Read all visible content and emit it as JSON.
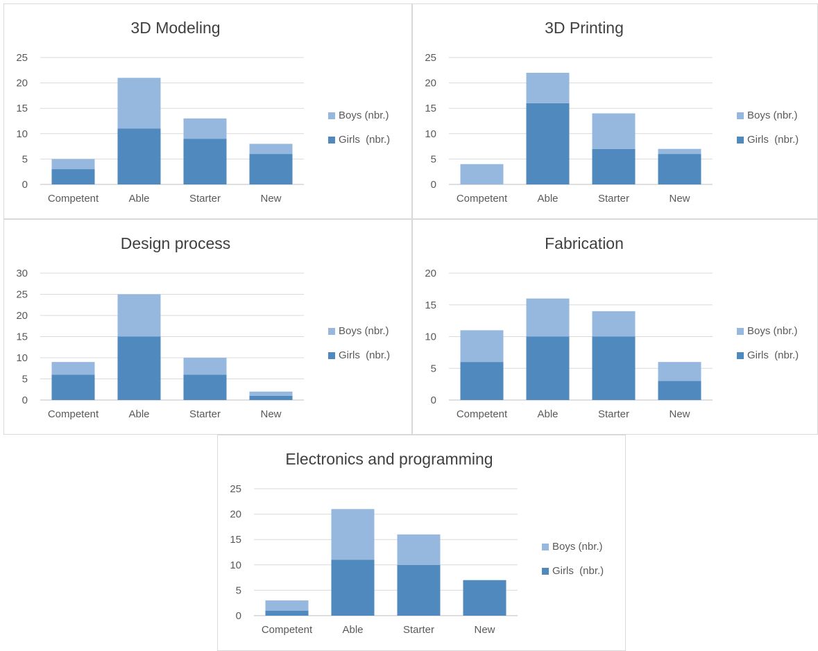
{
  "colors": {
    "girls": "#4f89bd",
    "boys": "#96b8df",
    "grid": "#d9d9d9",
    "text": "#595959",
    "title": "#404040"
  },
  "chart_data": [
    {
      "type": "bar",
      "stacked": true,
      "title": "3D Modeling",
      "categories": [
        "Competent",
        "Able",
        "Starter",
        "New"
      ],
      "series": [
        {
          "name": "Girls  (nbr.)",
          "values": [
            3,
            11,
            9,
            6
          ]
        },
        {
          "name": "Boys (nbr.)",
          "values": [
            2,
            10,
            4,
            2
          ]
        }
      ],
      "ylim": [
        0,
        25
      ],
      "yticks": [
        0,
        5,
        10,
        15,
        20,
        25
      ],
      "grid": true,
      "legend": "right"
    },
    {
      "type": "bar",
      "stacked": true,
      "title": "3D Printing",
      "categories": [
        "Competent",
        "Able",
        "Starter",
        "New"
      ],
      "series": [
        {
          "name": "Girls  (nbr.)",
          "values": [
            0,
            16,
            7,
            6
          ]
        },
        {
          "name": "Boys (nbr.)",
          "values": [
            4,
            6,
            7,
            1
          ]
        }
      ],
      "ylim": [
        0,
        25
      ],
      "yticks": [
        0,
        5,
        10,
        15,
        20,
        25
      ],
      "grid": true,
      "legend": "right"
    },
    {
      "type": "bar",
      "stacked": true,
      "title": "Design process",
      "categories": [
        "Competent",
        "Able",
        "Starter",
        "New"
      ],
      "series": [
        {
          "name": "Girls  (nbr.)",
          "values": [
            6,
            15,
            6,
            1
          ]
        },
        {
          "name": "Boys (nbr.)",
          "values": [
            3,
            10,
            4,
            1
          ]
        }
      ],
      "ylim": [
        0,
        30
      ],
      "yticks": [
        0,
        5,
        10,
        15,
        20,
        25,
        30
      ],
      "grid": true,
      "legend": "right"
    },
    {
      "type": "bar",
      "stacked": true,
      "title": "Fabrication",
      "categories": [
        "Competent",
        "Able",
        "Starter",
        "New"
      ],
      "series": [
        {
          "name": "Girls  (nbr.)",
          "values": [
            6,
            10,
            10,
            3
          ]
        },
        {
          "name": "Boys (nbr.)",
          "values": [
            5,
            6,
            4,
            3
          ]
        }
      ],
      "ylim": [
        0,
        20
      ],
      "yticks": [
        0,
        5,
        10,
        15,
        20
      ],
      "grid": true,
      "legend": "right"
    },
    {
      "type": "bar",
      "stacked": true,
      "title": "Electronics and programming",
      "categories": [
        "Competent",
        "Able",
        "Starter",
        "New"
      ],
      "series": [
        {
          "name": "Girls  (nbr.)",
          "values": [
            1,
            11,
            10,
            7
          ]
        },
        {
          "name": "Boys (nbr.)",
          "values": [
            2,
            10,
            6,
            0
          ]
        }
      ],
      "ylim": [
        0,
        25
      ],
      "yticks": [
        0,
        5,
        10,
        15,
        20,
        25
      ],
      "grid": true,
      "legend": "right"
    }
  ]
}
